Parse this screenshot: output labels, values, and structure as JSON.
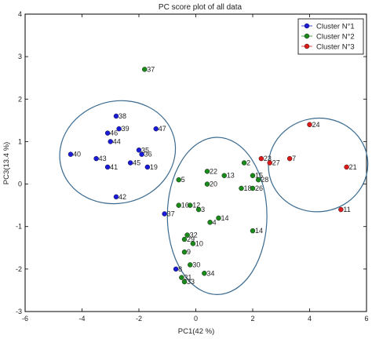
{
  "chart_data": {
    "type": "scatter",
    "title": "PC score plot of all data",
    "xlabel": "PC1(42 %)",
    "ylabel": "PC3(13.4 %)",
    "xlim": [
      -6,
      6
    ],
    "ylim": [
      -3,
      4
    ],
    "xticks": [
      -6,
      -4,
      -2,
      0,
      2,
      4,
      6
    ],
    "yticks": [
      -3,
      -2,
      -1,
      0,
      1,
      2,
      3,
      4
    ],
    "grid": false,
    "legend_position": "top-right",
    "series": [
      {
        "name": "Cluster N°1",
        "color": "#1a1adb",
        "points": [
          {
            "label": "40",
            "x": -4.4,
            "y": 0.7
          },
          {
            "label": "43",
            "x": -3.5,
            "y": 0.6
          },
          {
            "label": "41",
            "x": -3.1,
            "y": 0.4
          },
          {
            "label": "46",
            "x": -3.1,
            "y": 1.2
          },
          {
            "label": "44",
            "x": -3.0,
            "y": 1.0
          },
          {
            "label": "38",
            "x": -2.8,
            "y": 1.6
          },
          {
            "label": "39",
            "x": -2.7,
            "y": 1.3
          },
          {
            "label": "35",
            "x": -2.0,
            "y": 0.8
          },
          {
            "label": "36",
            "x": -1.9,
            "y": 0.7
          },
          {
            "label": "45",
            "x": -2.3,
            "y": 0.5
          },
          {
            "label": "19",
            "x": -1.7,
            "y": 0.4
          },
          {
            "label": "47",
            "x": -1.4,
            "y": 1.3
          },
          {
            "label": "42",
            "x": -2.8,
            "y": -0.3
          },
          {
            "label": "37",
            "x": -1.1,
            "y": -0.7
          },
          {
            "label": "8",
            "x": -0.7,
            "y": -2.0
          }
        ]
      },
      {
        "name": "Cluster N°2",
        "color": "#1a8a1a",
        "points": [
          {
            "label": "37",
            "x": -1.8,
            "y": 2.7
          },
          {
            "label": "5",
            "x": -0.6,
            "y": 0.1
          },
          {
            "label": "16",
            "x": -0.6,
            "y": -0.5
          },
          {
            "label": "12",
            "x": -0.2,
            "y": -0.5
          },
          {
            "label": "3",
            "x": 0.1,
            "y": -0.6
          },
          {
            "label": "22",
            "x": 0.4,
            "y": 0.3
          },
          {
            "label": "20",
            "x": 0.4,
            "y": 0.0
          },
          {
            "label": "13",
            "x": 1.0,
            "y": 0.2
          },
          {
            "label": "2",
            "x": 1.7,
            "y": 0.5
          },
          {
            "label": "15",
            "x": 2.0,
            "y": 0.2
          },
          {
            "label": "28",
            "x": 2.2,
            "y": 0.1
          },
          {
            "label": "18",
            "x": 1.6,
            "y": -0.1
          },
          {
            "label": "26",
            "x": 2.0,
            "y": -0.1
          },
          {
            "label": "4",
            "x": 0.5,
            "y": -0.9
          },
          {
            "label": "14",
            "x": 0.8,
            "y": -0.8
          },
          {
            "label": "14",
            "x": 2.0,
            "y": -1.1
          },
          {
            "label": "29",
            "x": -0.4,
            "y": -1.3
          },
          {
            "label": "32",
            "x": -0.3,
            "y": -1.2
          },
          {
            "label": "9",
            "x": -0.4,
            "y": -1.6
          },
          {
            "label": "10",
            "x": -0.1,
            "y": -1.4
          },
          {
            "label": "30",
            "x": -0.2,
            "y": -1.9
          },
          {
            "label": "34",
            "x": 0.3,
            "y": -2.1
          },
          {
            "label": "31",
            "x": -0.5,
            "y": -2.2
          },
          {
            "label": "33",
            "x": -0.4,
            "y": -2.3
          }
        ]
      },
      {
        "name": "Cluster N°3",
        "color": "#dd1a1a",
        "points": [
          {
            "label": "24",
            "x": 4.0,
            "y": 1.4
          },
          {
            "label": "23",
            "x": 2.3,
            "y": 0.6
          },
          {
            "label": "27",
            "x": 2.6,
            "y": 0.5
          },
          {
            "label": "7",
            "x": 3.3,
            "y": 0.6
          },
          {
            "label": "21",
            "x": 5.3,
            "y": 0.4
          },
          {
            "label": "11",
            "x": 5.1,
            "y": -0.6
          }
        ]
      }
    ],
    "ellipses": [
      {
        "cluster": "Cluster N°1",
        "cx": -2.75,
        "cy": 0.75,
        "rx": 2.05,
        "ry": 1.2,
        "rotation_deg": -15,
        "color": "#3a6a8f"
      },
      {
        "cluster": "Cluster N°2",
        "cx": 0.75,
        "cy": -0.75,
        "rx": 1.75,
        "ry": 1.85,
        "rotation_deg": 0,
        "color": "#3a6a8f"
      },
      {
        "cluster": "Cluster N°3",
        "cx": 4.3,
        "cy": 0.45,
        "rx": 1.75,
        "ry": 1.1,
        "rotation_deg": -10,
        "color": "#3a6a8f"
      }
    ]
  }
}
